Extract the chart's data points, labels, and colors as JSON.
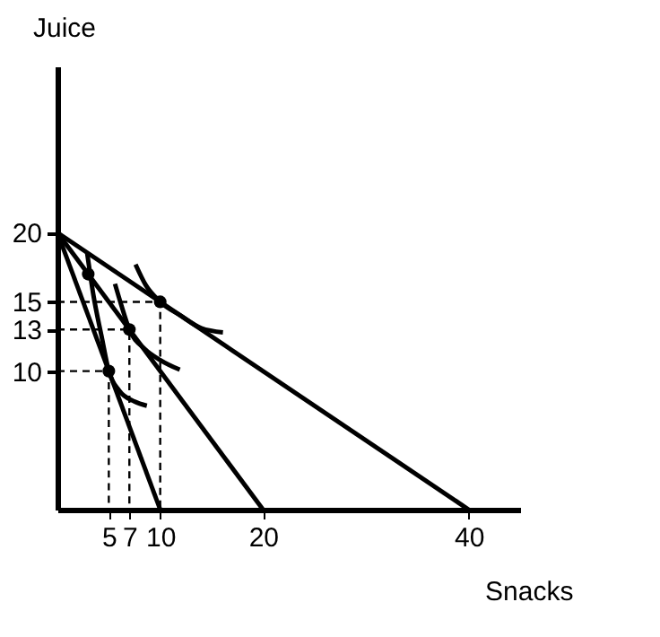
{
  "chart_data": {
    "type": "line",
    "xlabel": "Snacks",
    "ylabel": "Juice",
    "xlim": [
      0,
      45
    ],
    "ylim": [
      0,
      32
    ],
    "xticks": [
      5,
      7,
      10,
      20,
      40
    ],
    "yticks": [
      10,
      13,
      15,
      20
    ],
    "grid": false,
    "series": [
      {
        "color": "#000000",
        "x": [
          0,
          10
        ],
        "values": [
          20,
          0
        ]
      },
      {
        "color": "#000000",
        "x": [
          0,
          20
        ],
        "values": [
          20,
          0
        ]
      },
      {
        "color": "#000000",
        "x": [
          0,
          40
        ],
        "values": [
          20,
          0
        ]
      },
      {
        "color": "#000000",
        "x": [
          2.9,
          3.5,
          4.3,
          5,
          6,
          7.5,
          8.7
        ],
        "values": [
          18.5,
          15.5,
          12.5,
          10,
          8.6,
          7.8,
          7.5
        ]
      },
      {
        "color": "#000000",
        "x": [
          5.6,
          6.2,
          7,
          8.5,
          10,
          11.9
        ],
        "values": [
          16.3,
          14.8,
          13,
          11.6,
          10.8,
          10.1
        ]
      },
      {
        "color": "#000000",
        "x": [
          7.6,
          8.6,
          10,
          12,
          14,
          16.1
        ],
        "values": [
          17.7,
          16.2,
          15,
          14,
          13.1,
          12.8
        ]
      },
      {
        "color": "#000000",
        "line_style": "dashed",
        "x": [
          0,
          5,
          5
        ],
        "values": [
          10,
          10,
          0
        ]
      },
      {
        "color": "#000000",
        "line_style": "dashed",
        "x": [
          0,
          7,
          7
        ],
        "values": [
          13,
          13,
          0
        ]
      },
      {
        "color": "#000000",
        "line_style": "dashed",
        "x": [
          0,
          10,
          10
        ],
        "values": [
          15,
          15,
          0
        ]
      },
      {
        "type": "scatter",
        "color": "#000000",
        "marker": "circle",
        "x": [
          3,
          5,
          7,
          10
        ],
        "values": [
          17,
          10,
          13,
          15
        ]
      }
    ]
  }
}
